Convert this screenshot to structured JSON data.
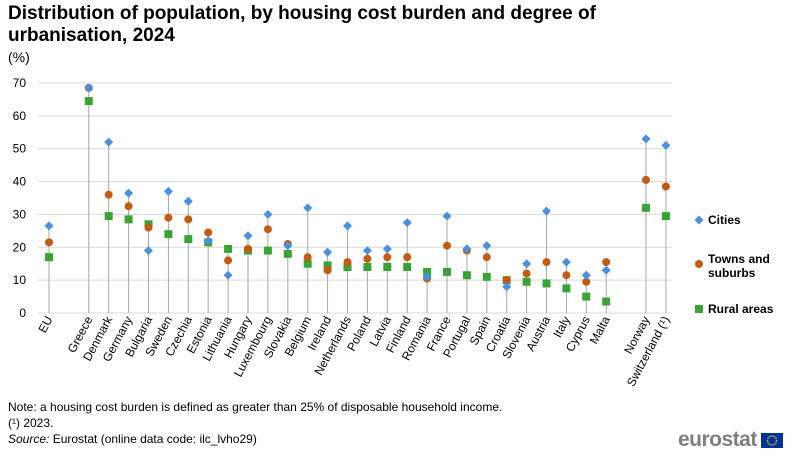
{
  "title": "Distribution of population, by housing cost burden and degree of urbanisation, 2024",
  "unit": "(%)",
  "note": "Note: a housing  cost burden  is defined as greater than  25% of disposable household income.",
  "footnote": "(¹) 2023.",
  "source_label": "Source:",
  "source_text": " Eurostat (online data code: ilc_lvho29)",
  "logo_text": "eurostat",
  "colors": {
    "cities": "#4a90e2",
    "towns": "#c55a11",
    "rural": "#3aa335",
    "stem": "#a6a6a6",
    "grid": "#d9d9d9",
    "flag_blue": "#003399",
    "flag_star": "#ffcc00"
  },
  "chart_data": {
    "type": "scatter",
    "title": "Distribution of population, by housing cost burden and degree of urbanisation, 2024",
    "ylabel": "(%)",
    "ylim": [
      0,
      70
    ],
    "yticks": [
      0,
      10,
      20,
      30,
      40,
      50,
      60,
      70
    ],
    "grid": true,
    "legend_position": "right",
    "categories": [
      "EU",
      "",
      "Greece",
      "Denmark",
      "Germany",
      "Bulgaria",
      "Sweden",
      "Czechia",
      "Estonia",
      "Lithuania",
      "Hungary",
      "Luxembourg",
      "Slovakia",
      "Belgium",
      "Ireland",
      "Netherlands",
      "Poland",
      "Latvia",
      "Finland",
      "Romania",
      "France",
      "Portugal",
      "Spain",
      "Croatia",
      "Slovenia",
      "Austria",
      "Italy",
      "Cyprus",
      "Malta",
      "",
      "Norway",
      "Switzerland (¹)"
    ],
    "series": [
      {
        "name": "Cities",
        "marker": "diamond",
        "values": [
          26.5,
          null,
          68.5,
          52.0,
          36.5,
          19.0,
          37.0,
          34.0,
          22.0,
          11.5,
          23.5,
          30.0,
          20.5,
          32.0,
          18.5,
          26.5,
          19.0,
          19.5,
          27.5,
          11.0,
          29.5,
          19.5,
          20.5,
          8.0,
          15.0,
          31.0,
          15.5,
          11.5,
          13.0,
          null,
          53.0,
          51.0
        ]
      },
      {
        "name": "Towns and suburbs",
        "marker": "circle",
        "values": [
          21.5,
          null,
          68.5,
          36.0,
          32.5,
          26.0,
          29.0,
          28.5,
          24.5,
          16.0,
          19.5,
          25.5,
          21.0,
          17.0,
          13.0,
          15.5,
          16.5,
          17.0,
          17.0,
          10.5,
          20.5,
          19.0,
          17.0,
          10.0,
          12.0,
          15.5,
          11.5,
          9.5,
          15.5,
          null,
          40.5,
          38.5
        ]
      },
      {
        "name": "Rural areas",
        "marker": "square",
        "values": [
          17.0,
          null,
          64.5,
          29.5,
          28.5,
          27.0,
          24.0,
          22.5,
          21.5,
          19.5,
          19.0,
          19.0,
          18.0,
          15.0,
          14.5,
          14.0,
          14.0,
          14.0,
          14.0,
          12.5,
          12.5,
          11.5,
          11.0,
          10.0,
          9.5,
          9.0,
          7.5,
          5.0,
          3.5,
          null,
          32.0,
          29.5
        ]
      }
    ]
  }
}
